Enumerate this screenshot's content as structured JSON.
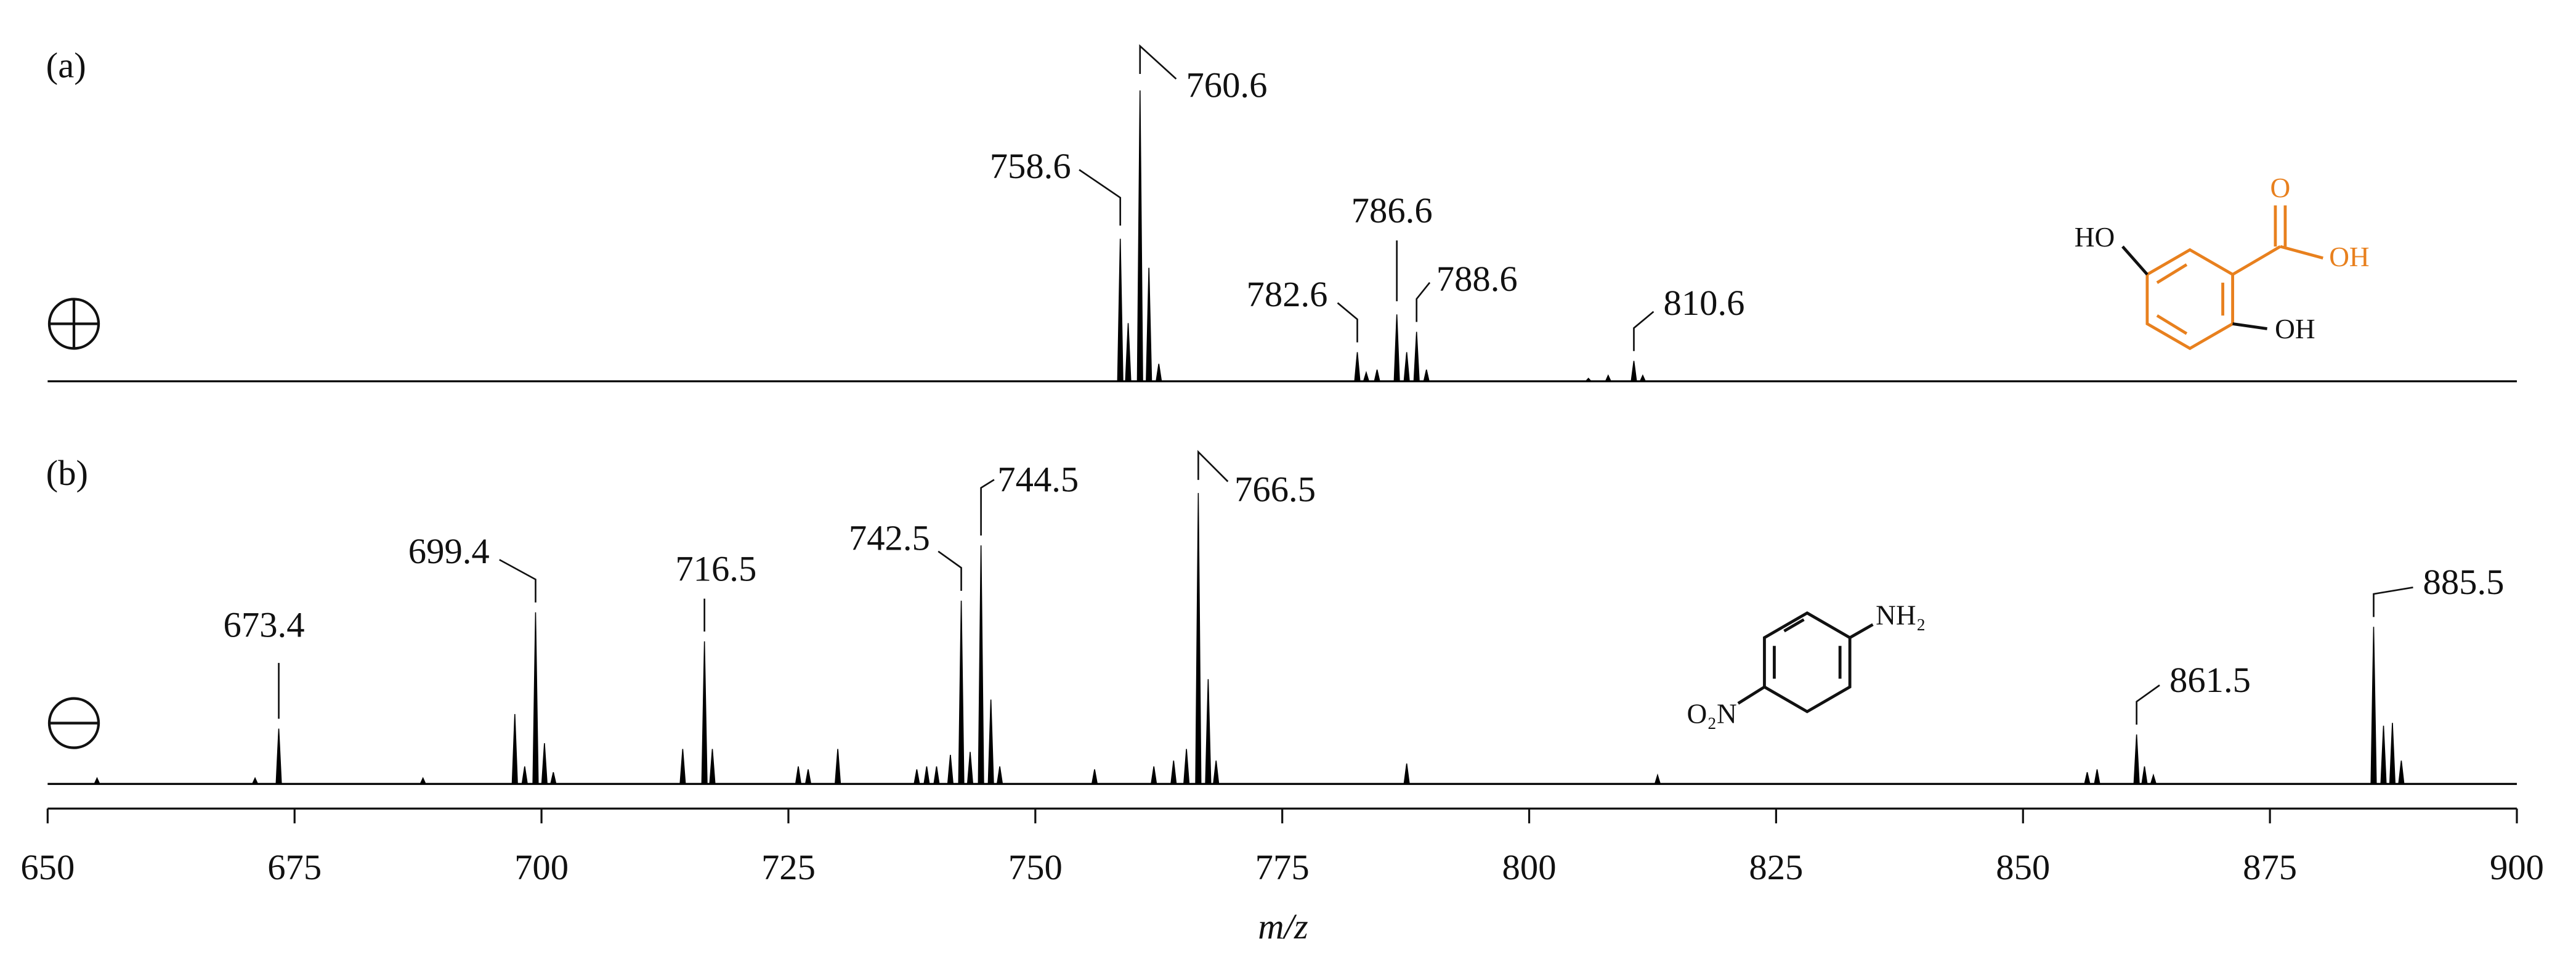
{
  "chart_data": [
    {
      "type": "spectrum",
      "panel_label": "(a)",
      "color": "#000000",
      "x": [
        758.6,
        759.4,
        760.6,
        761.5,
        762.5,
        782.6,
        783.5,
        784.6,
        786.6,
        787.6,
        788.6,
        789.6,
        806.0,
        808.0,
        810.6,
        811.5
      ],
      "values": [
        49,
        20,
        100,
        39,
        6,
        10,
        3,
        4,
        23,
        10,
        17,
        4,
        1,
        2,
        7,
        2
      ],
      "labeled_peaks": [
        758.6,
        760.6,
        782.6,
        786.6,
        788.6,
        810.6
      ],
      "xlim": [
        650,
        900
      ],
      "structure_color": "#e8801e",
      "structure_labels": [
        "HO",
        "O",
        "OH",
        "OH"
      ]
    },
    {
      "type": "spectrum",
      "panel_label": "(b)",
      "color": "#000000",
      "x": [
        655.0,
        671.0,
        673.4,
        688.0,
        697.3,
        698.3,
        699.4,
        700.3,
        701.2,
        714.3,
        716.5,
        717.3,
        726.0,
        727.0,
        730.0,
        738.0,
        739.0,
        740.0,
        741.4,
        742.5,
        743.4,
        744.5,
        745.5,
        746.4,
        756.0,
        762.0,
        764.0,
        765.3,
        766.5,
        767.5,
        768.3,
        787.6,
        813.0,
        856.5,
        857.5,
        861.5,
        862.3,
        863.2,
        885.5,
        886.5,
        887.4,
        888.3
      ],
      "values": [
        2,
        2,
        19,
        2,
        24,
        6,
        59,
        14,
        4,
        12,
        49,
        12,
        6,
        5,
        12,
        5,
        6,
        6,
        10,
        63,
        11,
        82,
        29,
        6,
        5,
        6,
        8,
        12,
        100,
        36,
        8,
        7,
        3,
        4,
        5,
        17,
        6,
        3,
        54,
        20,
        21,
        8
      ],
      "labeled_peaks": [
        673.4,
        699.4,
        716.5,
        742.5,
        744.5,
        766.5,
        861.5,
        885.5
      ],
      "xlim": [
        650,
        900
      ],
      "xticks": [
        650,
        675,
        700,
        725,
        750,
        775,
        800,
        825,
        850,
        875,
        900
      ],
      "xlabel": "m/z",
      "structure_labels": [
        "NH₂",
        "O₂N"
      ]
    }
  ]
}
